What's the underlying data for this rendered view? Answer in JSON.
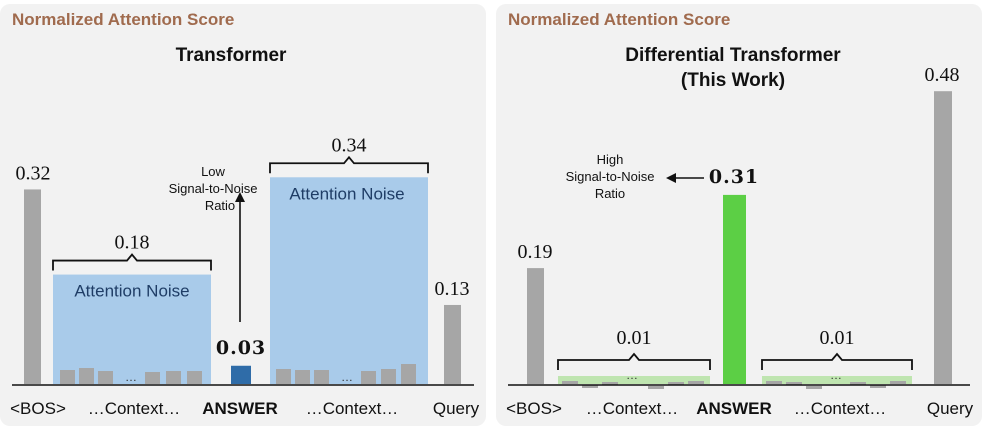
{
  "chart_data": [
    {
      "type": "bar",
      "header": "Normalized Attention Score",
      "title": "Transformer",
      "categories": [
        "<BOS>",
        "…Context…",
        "ANSWER",
        "…Context…",
        "Query"
      ],
      "values": [
        0.32,
        0.18,
        0.03,
        0.34,
        0.13
      ],
      "value_labels": [
        "0.32",
        "0.18",
        "0.03",
        "0.34",
        "0.13"
      ],
      "noise_label": "Attention Noise",
      "annotation": [
        "Low",
        "Signal-to-Noise",
        "Ratio"
      ],
      "ellipsis": "…",
      "colors": {
        "bos_query": "#a6a6a6",
        "noise": "#a9cbea",
        "answer": "#2f6ca8",
        "context_bar": "#a6a6a6"
      }
    },
    {
      "type": "bar",
      "header": "Normalized Attention Score",
      "title": "Differential Transformer",
      "subtitle": "(This Work)",
      "categories": [
        "<BOS>",
        "…Context…",
        "ANSWER",
        "…Context…",
        "Query"
      ],
      "values": [
        0.19,
        0.01,
        0.31,
        0.01,
        0.48
      ],
      "value_labels": [
        "0.19",
        "0.01",
        "0.31",
        "0.01",
        "0.48"
      ],
      "annotation": [
        "High",
        "Signal-to-Noise",
        "Ratio"
      ],
      "ellipsis": "…",
      "colors": {
        "bos_query": "#a6a6a6",
        "noise": "#bfe5b0",
        "answer": "#5ccf45",
        "context_bar": "#a6a6a6"
      }
    }
  ]
}
